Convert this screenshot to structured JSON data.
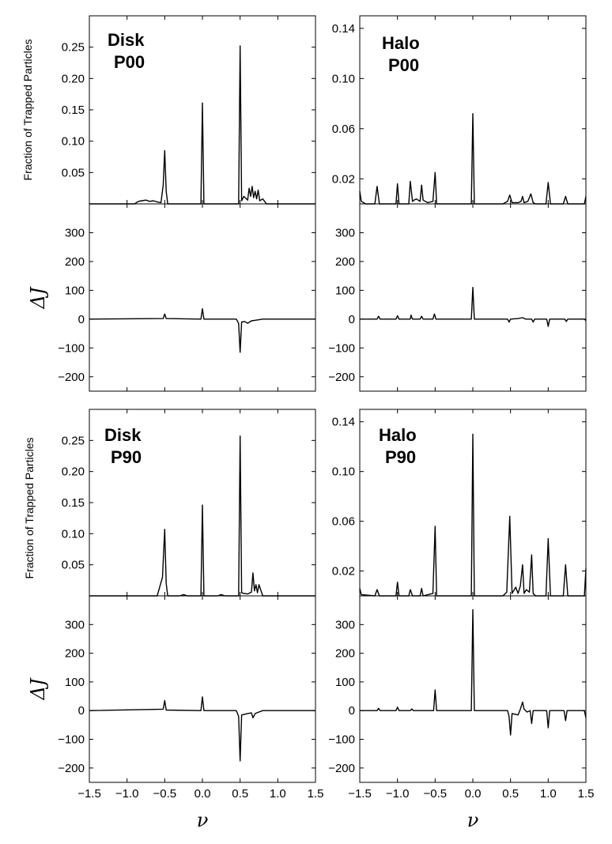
{
  "chart_data": [
    {
      "id": "disk_p00_frac",
      "type": "line",
      "label_line1": "Disk",
      "label_line2": "P00",
      "ylabel": "Fraction of Trapped Particles",
      "xlim": [
        -1.5,
        1.5
      ],
      "ylim": [
        0,
        0.3
      ],
      "yticks": [
        0.05,
        0.1,
        0.15,
        0.2,
        0.25
      ],
      "ytick_labels": [
        "0.05",
        "0.10",
        "0.15",
        "0.20",
        "0.25"
      ],
      "x": [
        -1.5,
        -0.9,
        -0.85,
        -0.8,
        -0.75,
        -0.7,
        -0.65,
        -0.6,
        -0.55,
        -0.52,
        -0.5,
        -0.48,
        -0.46,
        -0.4,
        -0.02,
        0.0,
        0.02,
        0.1,
        0.48,
        0.5,
        0.52,
        0.55,
        0.6,
        0.62,
        0.64,
        0.66,
        0.68,
        0.7,
        0.72,
        0.74,
        0.76,
        0.8,
        0.85,
        1.5
      ],
      "y": [
        0,
        0,
        0.004,
        0.005,
        0.006,
        0.004,
        0.005,
        0.003,
        0.002,
        0.03,
        0.085,
        0.02,
        0,
        0,
        0,
        0.161,
        0,
        0,
        0,
        0.252,
        0.005,
        0.012,
        0.006,
        0.025,
        0.012,
        0.028,
        0.01,
        0.02,
        0.008,
        0.022,
        0.005,
        0.008,
        0,
        0
      ]
    },
    {
      "id": "disk_p00_dj",
      "type": "line",
      "ylabel": "ΔJ",
      "xlim": [
        -1.5,
        1.5
      ],
      "ylim": [
        -250,
        400
      ],
      "yticks": [
        -200,
        -100,
        0,
        100,
        200,
        300
      ],
      "ytick_labels": [
        "−200",
        "−100",
        "0",
        "100",
        "200",
        "300"
      ],
      "x": [
        -1.5,
        -0.52,
        -0.5,
        -0.48,
        -0.02,
        0.0,
        0.02,
        0.45,
        0.48,
        0.5,
        0.52,
        0.56,
        0.6,
        0.65,
        0.7,
        0.8,
        1.5
      ],
      "y": [
        0,
        2,
        18,
        2,
        0,
        36,
        0,
        0,
        -15,
        -115,
        -10,
        -8,
        -14,
        -6,
        -4,
        0,
        0
      ]
    },
    {
      "id": "halo_p00_frac",
      "type": "line",
      "label_line1": "Halo",
      "label_line2": "P00",
      "xlim": [
        -1.5,
        1.5
      ],
      "ylim": [
        0,
        0.15
      ],
      "yticks": [
        0.02,
        0.06,
        0.1,
        0.14
      ],
      "ytick_labels": [
        "0.02",
        "0.06",
        "0.10",
        "0.14"
      ],
      "x": [
        -1.5,
        -1.48,
        -1.42,
        -1.3,
        -1.27,
        -1.24,
        -1.2,
        -1.02,
        -1.0,
        -0.98,
        -0.85,
        -0.83,
        -0.8,
        -0.78,
        -0.75,
        -0.7,
        -0.68,
        -0.66,
        -0.6,
        -0.53,
        -0.5,
        -0.48,
        -0.45,
        -0.02,
        0.0,
        0.02,
        0.4,
        0.46,
        0.49,
        0.52,
        0.6,
        0.64,
        0.66,
        0.68,
        0.73,
        0.77,
        0.8,
        0.83,
        0.97,
        1.0,
        1.03,
        1.2,
        1.23,
        1.26,
        1.48,
        1.5
      ],
      "y": [
        0.01,
        0.002,
        0,
        0,
        0.014,
        0,
        0,
        0,
        0.016,
        0,
        0,
        0.018,
        0.002,
        0.003,
        0.004,
        0.002,
        0.015,
        0.003,
        0.001,
        0.002,
        0.025,
        0,
        0,
        0,
        0.072,
        0,
        0,
        0.002,
        0.007,
        0.001,
        0.001,
        0.002,
        0.006,
        0.001,
        0.002,
        0.008,
        0.001,
        0,
        0,
        0.017,
        0,
        0,
        0.006,
        0,
        0,
        0.006
      ]
    },
    {
      "id": "halo_p00_dj",
      "type": "line",
      "ylabel": "ΔJ",
      "xlim": [
        -1.5,
        1.5
      ],
      "ylim": [
        -250,
        400
      ],
      "yticks": [
        -200,
        -100,
        0,
        100,
        200,
        300
      ],
      "ytick_labels": [
        "−200",
        "−100",
        "0",
        "100",
        "200",
        "300"
      ],
      "x": [
        -1.5,
        -1.27,
        -1.25,
        -1.23,
        -1.02,
        -1.0,
        -0.98,
        -0.83,
        -0.82,
        -0.8,
        -0.7,
        -0.68,
        -0.66,
        -0.53,
        -0.51,
        -0.49,
        -0.02,
        0.0,
        0.02,
        0.46,
        0.48,
        0.5,
        0.6,
        0.66,
        0.7,
        0.78,
        0.8,
        0.82,
        0.98,
        1.0,
        1.02,
        1.22,
        1.24,
        1.26,
        1.48,
        1.5
      ],
      "y": [
        0,
        0,
        10,
        0,
        0,
        12,
        0,
        0,
        14,
        0,
        0,
        10,
        0,
        0,
        18,
        0,
        0,
        110,
        0,
        0,
        -10,
        0,
        2,
        5,
        0,
        0,
        -10,
        0,
        0,
        -25,
        0,
        0,
        -8,
        0,
        0,
        -5
      ]
    },
    {
      "id": "disk_p90_frac",
      "type": "line",
      "label_line1": "Disk",
      "label_line2": "P90",
      "ylabel": "Fraction of Trapped Particles",
      "xlim": [
        -1.5,
        1.5
      ],
      "ylim": [
        0,
        0.3
      ],
      "yticks": [
        0.05,
        0.1,
        0.15,
        0.2,
        0.25
      ],
      "ytick_labels": [
        "0.05",
        "0.10",
        "0.15",
        "0.20",
        "0.25"
      ],
      "x": [
        -1.5,
        -0.6,
        -0.53,
        -0.5,
        -0.48,
        -0.46,
        -0.3,
        -0.25,
        -0.2,
        -0.02,
        0.0,
        0.02,
        0.2,
        0.25,
        0.3,
        0.48,
        0.5,
        0.52,
        0.55,
        0.6,
        0.65,
        0.67,
        0.69,
        0.71,
        0.73,
        0.75,
        0.8,
        1.5
      ],
      "y": [
        0,
        0,
        0.03,
        0.107,
        0.02,
        0,
        0,
        0.002,
        0,
        0,
        0.146,
        0,
        0,
        0.002,
        0,
        0,
        0.257,
        0.005,
        0.004,
        0.003,
        0.006,
        0.037,
        0.008,
        0.018,
        0.005,
        0.018,
        0,
        0
      ]
    },
    {
      "id": "disk_p90_dj",
      "type": "line",
      "ylabel": "ΔJ",
      "xlim": [
        -1.5,
        1.5
      ],
      "ylim": [
        -250,
        400
      ],
      "yticks": [
        -200,
        -100,
        0,
        100,
        200,
        300
      ],
      "ytick_labels": [
        "−200",
        "−100",
        "0",
        "100",
        "200",
        "300"
      ],
      "x": [
        -1.5,
        -0.52,
        -0.5,
        -0.48,
        -0.02,
        0.0,
        0.02,
        0.45,
        0.48,
        0.5,
        0.52,
        0.6,
        0.65,
        0.67,
        0.7,
        0.75,
        0.8,
        1.5
      ],
      "y": [
        0,
        5,
        35,
        2,
        0,
        48,
        0,
        0,
        -20,
        -175,
        -15,
        -10,
        -8,
        -25,
        -10,
        -5,
        0,
        0
      ]
    },
    {
      "id": "halo_p90_frac",
      "type": "line",
      "label_line1": "Halo",
      "label_line2": "P90",
      "xlim": [
        -1.5,
        1.5
      ],
      "ylim": [
        0,
        0.15
      ],
      "yticks": [
        0.02,
        0.06,
        0.1,
        0.14
      ],
      "ytick_labels": [
        "0.02",
        "0.06",
        "0.10",
        "0.14"
      ],
      "x": [
        -1.5,
        -1.48,
        -1.3,
        -1.27,
        -1.24,
        -1.02,
        -1.0,
        -0.98,
        -0.85,
        -0.83,
        -0.8,
        -0.7,
        -0.68,
        -0.66,
        -0.53,
        -0.5,
        -0.48,
        -0.02,
        0.0,
        0.02,
        0.4,
        0.45,
        0.49,
        0.52,
        0.57,
        0.6,
        0.63,
        0.66,
        0.68,
        0.71,
        0.75,
        0.78,
        0.8,
        0.83,
        0.97,
        1.0,
        1.03,
        1.2,
        1.23,
        1.26,
        1.48,
        1.5
      ],
      "y": [
        0.006,
        0.001,
        0,
        0.005,
        0,
        0,
        0.011,
        0,
        0,
        0.005,
        0,
        0,
        0.006,
        0,
        0.002,
        0.056,
        0,
        0,
        0.13,
        0,
        0,
        0.003,
        0.064,
        0.002,
        0.007,
        0.002,
        0.008,
        0.025,
        0.002,
        0.005,
        0.003,
        0.033,
        0.002,
        0,
        0,
        0.046,
        0,
        0,
        0.025,
        0,
        0,
        0.022
      ]
    },
    {
      "id": "halo_p90_dj",
      "type": "line",
      "ylabel": "ΔJ",
      "xlim": [
        -1.5,
        1.5
      ],
      "ylim": [
        -250,
        400
      ],
      "yticks": [
        -200,
        -100,
        0,
        100,
        200,
        300
      ],
      "ytick_labels": [
        "−200",
        "−100",
        "0",
        "100",
        "200",
        "300"
      ],
      "xticks": [
        -1.5,
        -1.0,
        -0.5,
        0.0,
        0.5,
        1.0,
        1.5
      ],
      "xtick_labels": [
        "−1.5",
        "−1.0",
        "−0.5",
        "0.0",
        "0.5",
        "1.0",
        "1.5"
      ],
      "xlabel": "ν",
      "x": [
        -1.5,
        -1.27,
        -1.25,
        -1.23,
        -1.02,
        -1.0,
        -0.98,
        -0.83,
        -0.81,
        -0.79,
        -0.52,
        -0.5,
        -0.48,
        -0.02,
        0.0,
        0.02,
        0.46,
        0.48,
        0.5,
        0.52,
        0.6,
        0.63,
        0.66,
        0.68,
        0.72,
        0.76,
        0.78,
        0.8,
        0.98,
        1.0,
        1.02,
        1.21,
        1.23,
        1.25,
        1.48,
        1.5
      ],
      "y": [
        0,
        0,
        8,
        0,
        0,
        12,
        0,
        0,
        6,
        0,
        0,
        72,
        0,
        0,
        352,
        0,
        0,
        -20,
        -85,
        -10,
        -15,
        5,
        30,
        5,
        -5,
        0,
        -45,
        0,
        0,
        -60,
        0,
        0,
        -35,
        0,
        0,
        -25
      ]
    }
  ],
  "shared": {
    "xticks": [
      -1.5,
      -1.0,
      -0.5,
      0.0,
      0.5,
      1.0,
      1.5
    ],
    "xtick_labels": [
      "−1.5",
      "−1.0",
      "−0.5",
      "0.0",
      "0.5",
      "1.0",
      "1.5"
    ],
    "xlabel": "ν",
    "line_color": "#000000"
  }
}
